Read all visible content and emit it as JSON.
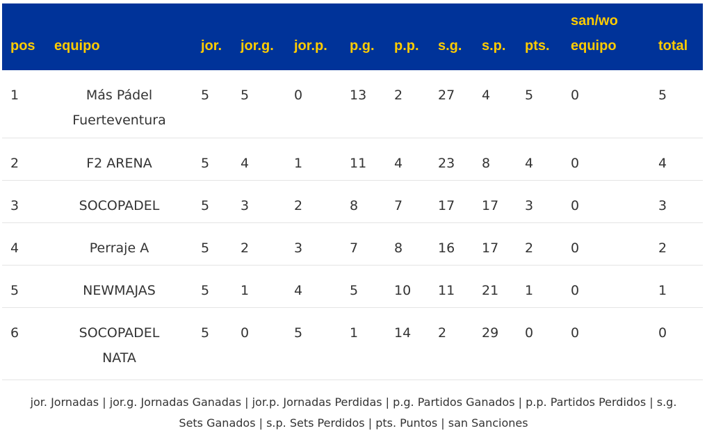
{
  "columns": [
    "pos",
    "equipo",
    "jor.",
    "jor.g.",
    "jor.p.",
    "p.g.",
    "p.p.",
    "s.g.",
    "s.p.",
    "pts.",
    "san/wo equipo",
    "total"
  ],
  "header": {
    "pos": "pos",
    "equipo": "equipo",
    "jor": "jor.",
    "jorg": "jor.g.",
    "jorp": "jor.p.",
    "pg": "p.g.",
    "pp": "p.p.",
    "sg": "s.g.",
    "sp": "s.p.",
    "pts": "pts.",
    "san_line1": "san/wo",
    "san_line2": "equipo",
    "total": "total"
  },
  "rows": [
    {
      "pos": "1",
      "team_line1": "Más Pádel",
      "team_line2": "Fuerteventura",
      "jor": "5",
      "jorg": "5",
      "jorp": "0",
      "pg": "13",
      "pp": "2",
      "sg": "27",
      "sp": "4",
      "pts": "5",
      "san": "0",
      "total": "5"
    },
    {
      "pos": "2",
      "team_line1": "F2 ARENA",
      "team_line2": "",
      "jor": "5",
      "jorg": "4",
      "jorp": "1",
      "pg": "11",
      "pp": "4",
      "sg": "23",
      "sp": "8",
      "pts": "4",
      "san": "0",
      "total": "4"
    },
    {
      "pos": "3",
      "team_line1": "SOCOPADEL",
      "team_line2": "",
      "jor": "5",
      "jorg": "3",
      "jorp": "2",
      "pg": "8",
      "pp": "7",
      "sg": "17",
      "sp": "17",
      "pts": "3",
      "san": "0",
      "total": "3"
    },
    {
      "pos": "4",
      "team_line1": "Perraje A",
      "team_line2": "",
      "jor": "5",
      "jorg": "2",
      "jorp": "3",
      "pg": "7",
      "pp": "8",
      "sg": "16",
      "sp": "17",
      "pts": "2",
      "san": "0",
      "total": "2"
    },
    {
      "pos": "5",
      "team_line1": "NEWMAJAS",
      "team_line2": "",
      "jor": "5",
      "jorg": "1",
      "jorp": "4",
      "pg": "5",
      "pp": "10",
      "sg": "11",
      "sp": "21",
      "pts": "1",
      "san": "0",
      "total": "1"
    },
    {
      "pos": "6",
      "team_line1": "SOCOPADEL",
      "team_line2": "NATA",
      "jor": "5",
      "jorg": "0",
      "jorp": "5",
      "pg": "1",
      "pp": "14",
      "sg": "2",
      "sp": "29",
      "pts": "0",
      "san": "0",
      "total": "0"
    }
  ],
  "legend": {
    "line1": "jor. Jornadas | jor.g. Jornadas Ganadas | jor.p. Jornadas Perdidas | p.g. Partidos Ganados | p.p. Partidos Perdidos | s.g.",
    "line2": "Sets Ganados | s.p. Sets Perdidos | pts. Puntos | san Sanciones"
  },
  "colors": {
    "header_bg": "#003399",
    "header_text": "#ffcc00",
    "body_text": "#333333",
    "row_divider": "#e4e4e4"
  }
}
